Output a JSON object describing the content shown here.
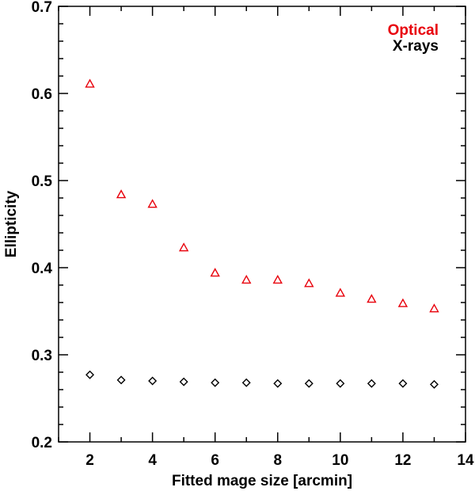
{
  "chart_data": {
    "type": "scatter",
    "title": "",
    "xlabel": "Fitted mage size [arcmin]",
    "ylabel": "Ellipticity",
    "xlim": [
      1,
      14
    ],
    "ylim": [
      0.2,
      0.7
    ],
    "xticks": [
      2,
      4,
      6,
      8,
      10,
      12,
      14
    ],
    "yticks": [
      0.2,
      0.3,
      0.4,
      0.5,
      0.6,
      0.7
    ],
    "xtick_labels": [
      "2",
      "4",
      "6",
      "8",
      "10",
      "12",
      "14"
    ],
    "ytick_labels": [
      "0.2",
      "0.3",
      "0.4",
      "0.5",
      "0.6",
      "0.7"
    ],
    "grid": false,
    "legend_position": "top-right",
    "series": [
      {
        "name": "Optical",
        "marker": "triangle",
        "color": "#e8000b",
        "x": [
          2,
          3,
          4,
          5,
          6,
          7,
          8,
          9,
          10,
          11,
          12,
          13
        ],
        "y": [
          0.611,
          0.484,
          0.473,
          0.423,
          0.394,
          0.386,
          0.386,
          0.382,
          0.371,
          0.364,
          0.359,
          0.353
        ]
      },
      {
        "name": "X-rays",
        "marker": "diamond",
        "color": "#000000",
        "x": [
          2,
          3,
          4,
          5,
          6,
          7,
          8,
          9,
          10,
          11,
          12,
          13
        ],
        "y": [
          0.277,
          0.271,
          0.27,
          0.269,
          0.268,
          0.268,
          0.267,
          0.267,
          0.267,
          0.267,
          0.267,
          0.266
        ]
      }
    ]
  }
}
